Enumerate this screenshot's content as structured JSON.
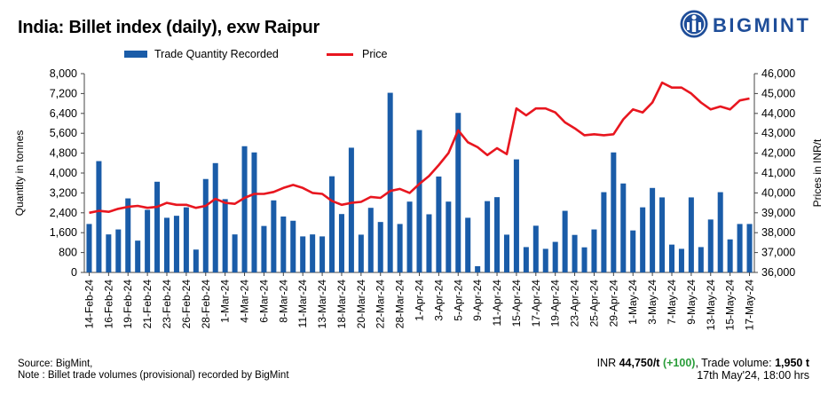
{
  "header": {
    "title": "India: Billet index (daily), exw Raipur",
    "logo_text": "BIGMINT"
  },
  "footer": {
    "source_line": "Source: BigMint,",
    "note_line": "Note : Billet trade volumes (provisional) recorded by BigMint",
    "price_prefix": "INR ",
    "price_value": "44,750/t",
    "price_change": "(+100)",
    "volume_label": ", Trade volume:",
    "volume_value": "1,950 t",
    "timestamp": "17th May'24, 18:00 hrs"
  },
  "colors": {
    "bar": "#1a5ca8",
    "line": "#e8161f",
    "brand": "#1f4e99"
  },
  "chart_data": {
    "type": "bar+line",
    "legend_position": "top",
    "ylabel_left": "Quantity in tonnes",
    "ylabel_right": "Prices in INR/t",
    "ylim_left": [
      0,
      8000
    ],
    "ylim_right": [
      36000,
      46000
    ],
    "yticks_left": [
      "0",
      "800",
      "1,600",
      "2,400",
      "3,200",
      "4,000",
      "4,800",
      "5,600",
      "6,400",
      "7,200",
      "8,000"
    ],
    "yticks_right": [
      "36,000",
      "37,000",
      "38,000",
      "39,000",
      "40,000",
      "41,000",
      "42,000",
      "43,000",
      "44,000",
      "45,000",
      "46,000"
    ],
    "x_tick_labels": [
      "14-Feb-24",
      "16-Feb-24",
      "19-Feb-24",
      "21-Feb-24",
      "23-Feb-24",
      "26-Feb-24",
      "28-Feb-24",
      "1-Mar-24",
      "4-Mar-24",
      "6-Mar-24",
      "8-Mar-24",
      "11-Mar-24",
      "13-Mar-24",
      "18-Mar-24",
      "20-Mar-24",
      "22-Mar-24",
      "28-Mar-24",
      "1-Apr-24",
      "3-Apr-24",
      "5-Apr-24",
      "9-Apr-24",
      "11-Apr-24",
      "15-Apr-24",
      "17-Apr-24",
      "19-Apr-24",
      "23-Apr-24",
      "25-Apr-24",
      "29-Apr-24",
      "1-May-24",
      "3-May-24",
      "7-May-24",
      "9-May-24",
      "13-May-24",
      "15-May-24",
      "17-May-24"
    ],
    "series": [
      {
        "name": "Trade Quantity Recorded",
        "kind": "bar",
        "axis": "left",
        "values": [
          1950,
          4480,
          1530,
          1730,
          2980,
          1280,
          2520,
          3650,
          2200,
          2280,
          2620,
          920,
          3760,
          4400,
          2950,
          1530,
          5080,
          4830,
          1870,
          2900,
          2250,
          2080,
          1450,
          1530,
          1450,
          3870,
          2350,
          5020,
          1520,
          2600,
          2030,
          7230,
          1950,
          2850,
          5730,
          2340,
          3860,
          2850,
          6420,
          2200,
          250,
          2870,
          3030,
          1520,
          4550,
          1020,
          1880,
          950,
          1230,
          2480,
          1510,
          1010,
          1730,
          3230,
          4830,
          3580,
          1690,
          2620,
          3400,
          3020,
          1120,
          950,
          3020,
          1020,
          2130,
          3230,
          1330,
          1950,
          1950
        ]
      },
      {
        "name": "Price",
        "kind": "line",
        "axis": "right",
        "values": [
          39000,
          39100,
          39050,
          39200,
          39300,
          39350,
          39250,
          39300,
          39500,
          39400,
          39400,
          39250,
          39350,
          39700,
          39500,
          39450,
          39750,
          39950,
          39950,
          40050,
          40250,
          40400,
          40250,
          40000,
          39950,
          39600,
          39400,
          39500,
          39550,
          39800,
          39750,
          40100,
          40200,
          40000,
          40450,
          40850,
          41400,
          42000,
          43150,
          42550,
          42300,
          41900,
          42250,
          41950,
          44250,
          43900,
          44250,
          44250,
          44050,
          43550,
          43250,
          42900,
          42950,
          42900,
          42950,
          43700,
          44200,
          44050,
          44550,
          45550,
          45300,
          45300,
          45000,
          44550,
          44200,
          44350,
          44200,
          44650,
          44750
        ]
      }
    ]
  }
}
